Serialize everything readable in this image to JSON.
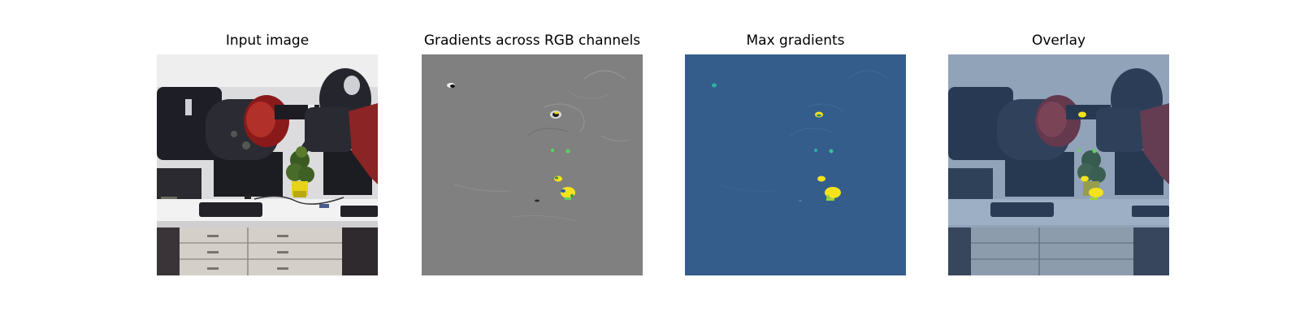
{
  "figure": {
    "panels": [
      {
        "title": "Input image",
        "content": "robot-scene-photo"
      },
      {
        "title": "Gradients across RGB channels",
        "content": "rgb-gradient-map"
      },
      {
        "title": "Max gradients",
        "content": "max-gradient-map"
      },
      {
        "title": "Overlay",
        "content": "overlay-photo"
      }
    ]
  },
  "colors": {
    "gradient_background": "#808080",
    "max_gradient_background": "#355d8c",
    "highlight_yellow": "#f4e21c",
    "highlight_green": "#5cd45a"
  }
}
